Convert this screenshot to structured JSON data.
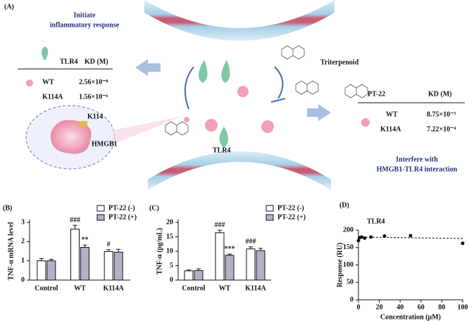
{
  "panel_a": {
    "label": "(A)",
    "initiate_text": [
      "Initiate",
      "inflammatory response"
    ],
    "left_table": {
      "header": [
        "TLR4",
        "KD (M)"
      ],
      "rows": [
        [
          "WT",
          "2.56×10⁻⁸"
        ],
        [
          "K114A",
          "1.56×10⁻⁶"
        ]
      ]
    },
    "site_label": "K114",
    "protein_label": "HMGB1",
    "compound_label": "Triterpenoid",
    "receptor_label": "TLR4",
    "right_table": {
      "header": [
        "PT-22",
        "KD (M)"
      ],
      "rows": [
        [
          "WT",
          "8.75×10⁻⁵"
        ],
        [
          "K114A",
          "7.22×10⁻⁴"
        ]
      ]
    },
    "interfere_text": [
      "Interfere with",
      "HMGB1-TLR4 interaction"
    ]
  },
  "chart_data": [
    {
      "type": "bar",
      "label": "(B)",
      "y_label": "TNF-α mRNA level",
      "categories": [
        "Control",
        "WT",
        "K114A"
      ],
      "series": [
        {
          "name": "PT-22 (-)",
          "color": "#ffffff",
          "values": [
            1.0,
            2.65,
            1.48
          ],
          "errors": [
            0.12,
            0.2,
            0.1
          ],
          "value_labels": [
            null,
            "###",
            "#"
          ]
        },
        {
          "name": "PT-22 (+)",
          "color": "#b3b1c9",
          "values": [
            1.0,
            1.7,
            1.45
          ],
          "errors": [
            0.08,
            0.12,
            0.15
          ],
          "value_labels": [
            null,
            "**",
            null
          ]
        }
      ],
      "ylim": [
        0,
        3
      ],
      "yticks": [
        0,
        1,
        2,
        3
      ]
    },
    {
      "type": "bar",
      "label": "(C)",
      "y_label": "TNF-α (pg/mL)",
      "categories": [
        "Control",
        "WT",
        "K114A"
      ],
      "series": [
        {
          "name": "PT-22 (-)",
          "color": "#ffffff",
          "values": [
            3.2,
            16.4,
            10.8
          ],
          "errors": [
            0.3,
            0.9,
            0.7
          ],
          "value_labels": [
            null,
            "###",
            "###"
          ]
        },
        {
          "name": "PT-22 (+)",
          "color": "#b3b1c9",
          "values": [
            3.3,
            8.6,
            10.2
          ],
          "errors": [
            0.6,
            0.4,
            0.8
          ],
          "value_labels": [
            null,
            "***",
            null
          ]
        }
      ],
      "ylim": [
        0,
        20
      ],
      "yticks": [
        0,
        5,
        10,
        15,
        20
      ]
    },
    {
      "type": "scatter",
      "label": "(D)",
      "title": "TLR4",
      "x_label": "Concentration (μM)",
      "y_label": "Response (RU)",
      "x": [
        0,
        1,
        3,
        6,
        12,
        25,
        50,
        100
      ],
      "y": [
        170,
        178,
        180,
        177,
        180,
        183,
        184,
        162
      ],
      "fit": {
        "x": [
          0,
          100
        ],
        "y": [
          180,
          176
        ]
      },
      "xlim": [
        0,
        100
      ],
      "xticks": [
        0,
        20,
        40,
        60,
        80,
        100
      ],
      "ylim": [
        0,
        200
      ],
      "yticks": [
        0,
        50,
        100,
        150,
        200
      ]
    }
  ]
}
